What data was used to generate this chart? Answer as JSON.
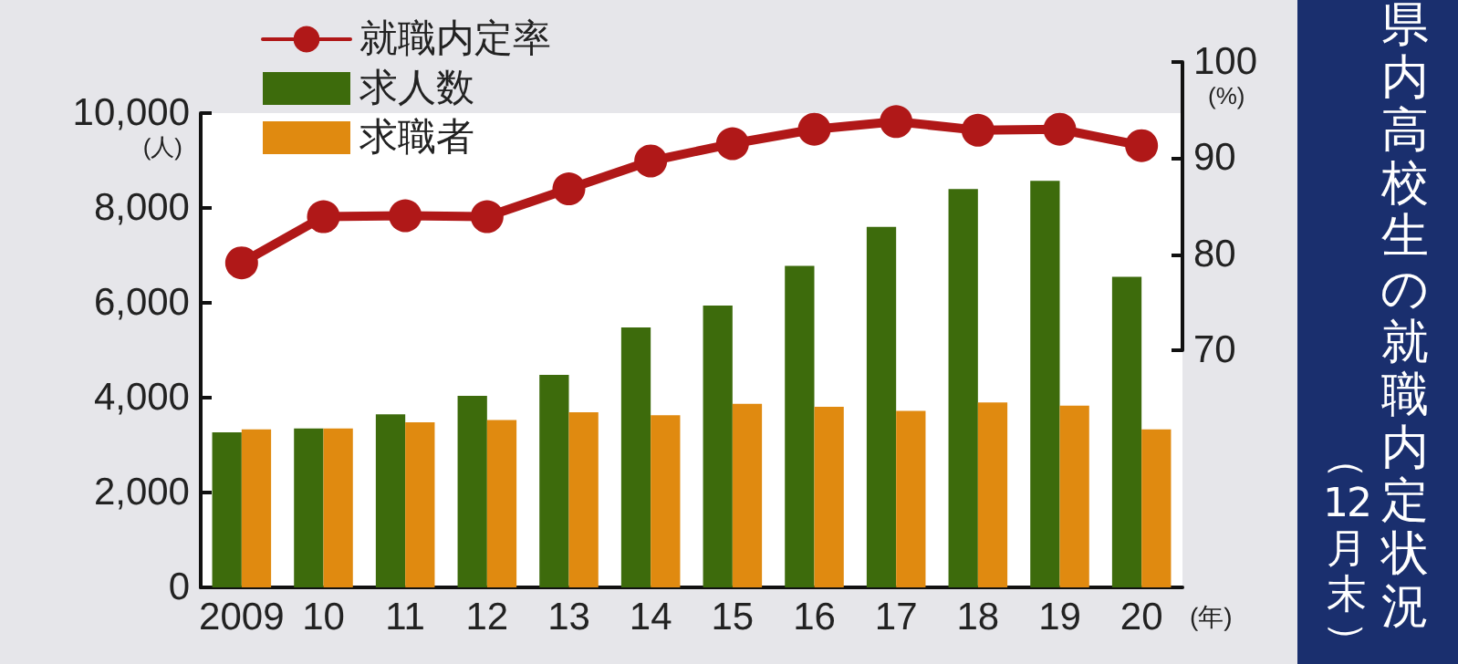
{
  "chart_data": {
    "type": "bar",
    "title": "県内高校生の就職内定状況",
    "subtitle": "（12月末）",
    "xlabel": "(年)",
    "ylabel": "(人)",
    "y2label": "(%)",
    "categories": [
      "2009",
      "10",
      "11",
      "12",
      "13",
      "14",
      "15",
      "16",
      "17",
      "18",
      "19",
      "20"
    ],
    "series": [
      {
        "name": "就職内定率",
        "type": "line",
        "axis": "y2",
        "color": "#b01818",
        "values": [
          79.1,
          83.9,
          84.0,
          83.9,
          86.8,
          89.7,
          91.5,
          93.0,
          93.8,
          92.9,
          93.0,
          91.3
        ]
      },
      {
        "name": "求人数",
        "color": "#3d6b0c",
        "values": [
          3270,
          3350,
          3650,
          4040,
          4480,
          5480,
          5940,
          6780,
          7600,
          8400,
          8570,
          6550
        ]
      },
      {
        "name": "求職者",
        "color": "#e08a10",
        "values": [
          3330,
          3350,
          3480,
          3530,
          3690,
          3630,
          3870,
          3810,
          3720,
          3900,
          3830,
          3330
        ]
      }
    ],
    "ylim": [
      0,
      10000
    ],
    "yticks": [
      0,
      {
        "value": 2000,
        "label": "2,000"
      },
      {
        "value": 4000,
        "label": "4,000"
      },
      {
        "value": 6000,
        "label": "6,000"
      },
      {
        "value": 8000,
        "label": "8,000"
      },
      {
        "value": 10000,
        "label": "10,000"
      }
    ],
    "y2lim": [
      70,
      100
    ],
    "y2ticks": [
      70,
      80,
      90,
      100
    ],
    "grid": false,
    "legend": "top left",
    "marker": "circle",
    "line_style": "solid"
  }
}
